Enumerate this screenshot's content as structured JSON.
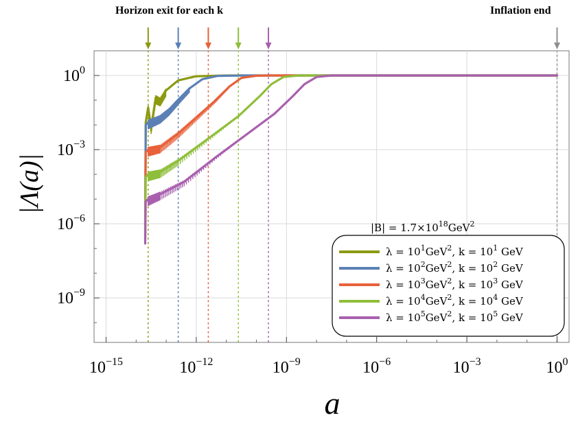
{
  "chart_data": {
    "type": "line",
    "title": "",
    "annotations": {
      "horizon_label": "Horizon exit for each k",
      "inflation_label": "Inflation end"
    },
    "xlabel": "a",
    "ylabel": "|Λ(a)|",
    "xscale": "log",
    "yscale": "log",
    "xlim_exp": [
      -15.4,
      0.4
    ],
    "ylim_exp": [
      -10.8,
      1.0
    ],
    "x_ticks": [
      {
        "base": "10",
        "exp": "−15",
        "value_exp": -15
      },
      {
        "base": "10",
        "exp": "−12",
        "value_exp": -12
      },
      {
        "base": "10",
        "exp": "−9",
        "value_exp": -9
      },
      {
        "base": "10",
        "exp": "−6",
        "value_exp": -6
      },
      {
        "base": "10",
        "exp": "−3",
        "value_exp": -3
      },
      {
        "base": "10",
        "exp": "0",
        "value_exp": 0
      }
    ],
    "y_ticks": [
      {
        "base": "10",
        "exp": "0",
        "value_exp": 0
      },
      {
        "base": "10",
        "exp": "−3",
        "value_exp": -3
      },
      {
        "base": "10",
        "exp": "−6",
        "value_exp": -6
      },
      {
        "base": "10",
        "exp": "−9",
        "value_exp": -9
      }
    ],
    "grid": true,
    "legend_position": "bottom-right",
    "legend_title": {
      "prefix": "|B| = 1.7×10",
      "exp": "18",
      "suffix": "GeV",
      "suffix_exp": "2"
    },
    "inflation_end_exp": 0,
    "series": [
      {
        "color": "#8c9a12",
        "legend": {
          "l_exp": "1",
          "k_exp": "1"
        },
        "horizon_exit_exp": -13.6,
        "points_exp": [
          [
            -13.7,
            -6.0
          ],
          [
            -13.68,
            -1.9
          ],
          [
            -13.6,
            -1.3
          ],
          [
            -13.5,
            -2.1
          ],
          [
            -13.35,
            -0.9
          ],
          [
            -13.2,
            -1.0
          ],
          [
            -13.0,
            -0.6
          ],
          [
            -12.6,
            -0.2
          ],
          [
            -12.0,
            -0.03
          ],
          [
            -11.0,
            0
          ],
          [
            0,
            0
          ]
        ]
      },
      {
        "color": "#5b80b5",
        "legend": {
          "l_exp": "2",
          "k_exp": "2"
        },
        "horizon_exit_exp": -12.6,
        "points_exp": [
          [
            -13.7,
            -6.2
          ],
          [
            -13.68,
            -2.0
          ],
          [
            -13.6,
            -1.9
          ],
          [
            -13.2,
            -1.7
          ],
          [
            -12.9,
            -1.4
          ],
          [
            -12.6,
            -1.0
          ],
          [
            -12.2,
            -0.5
          ],
          [
            -11.8,
            -0.15
          ],
          [
            -11.3,
            -0.02
          ],
          [
            -10.5,
            0
          ],
          [
            0,
            0
          ]
        ]
      },
      {
        "color": "#e8613a",
        "legend": {
          "l_exp": "3",
          "k_exp": "3"
        },
        "horizon_exit_exp": -11.6,
        "points_exp": [
          [
            -13.7,
            -6.4
          ],
          [
            -13.68,
            -3.1
          ],
          [
            -13.6,
            -3.0
          ],
          [
            -13.2,
            -2.9
          ],
          [
            -12.6,
            -2.35
          ],
          [
            -12.0,
            -1.7
          ],
          [
            -11.4,
            -1.05
          ],
          [
            -10.9,
            -0.45
          ],
          [
            -10.5,
            -0.1
          ],
          [
            -10.0,
            -0.01
          ],
          [
            -9.5,
            0
          ],
          [
            0,
            0
          ]
        ]
      },
      {
        "color": "#8fbe3a",
        "legend": {
          "l_exp": "4",
          "k_exp": "4"
        },
        "horizon_exit_exp": -10.6,
        "points_exp": [
          [
            -13.7,
            -6.6
          ],
          [
            -13.68,
            -4.1
          ],
          [
            -13.6,
            -4.0
          ],
          [
            -13.2,
            -3.9
          ],
          [
            -12.6,
            -3.45
          ],
          [
            -11.6,
            -2.55
          ],
          [
            -10.6,
            -1.65
          ],
          [
            -9.9,
            -0.85
          ],
          [
            -9.5,
            -0.35
          ],
          [
            -9.1,
            -0.06
          ],
          [
            -8.6,
            0
          ],
          [
            0,
            0
          ]
        ]
      },
      {
        "color": "#a860ae",
        "legend": {
          "l_exp": "5",
          "k_exp": "5"
        },
        "horizon_exit_exp": -9.6,
        "points_exp": [
          [
            -13.7,
            -6.8
          ],
          [
            -13.68,
            -5.1
          ],
          [
            -13.6,
            -5.0
          ],
          [
            -13.2,
            -4.8
          ],
          [
            -12.4,
            -4.3
          ],
          [
            -11.4,
            -3.35
          ],
          [
            -10.4,
            -2.45
          ],
          [
            -9.4,
            -1.55
          ],
          [
            -8.8,
            -0.85
          ],
          [
            -8.4,
            -0.35
          ],
          [
            -8.0,
            -0.06
          ],
          [
            -7.5,
            0
          ],
          [
            0,
            0
          ]
        ]
      }
    ]
  },
  "legend_text": {
    "lambda_prefix": "λ = 10",
    "gev2": "GeV",
    "gev2_exp": "2",
    "k_prefix": ",  k = 10",
    "gev": " GeV"
  }
}
